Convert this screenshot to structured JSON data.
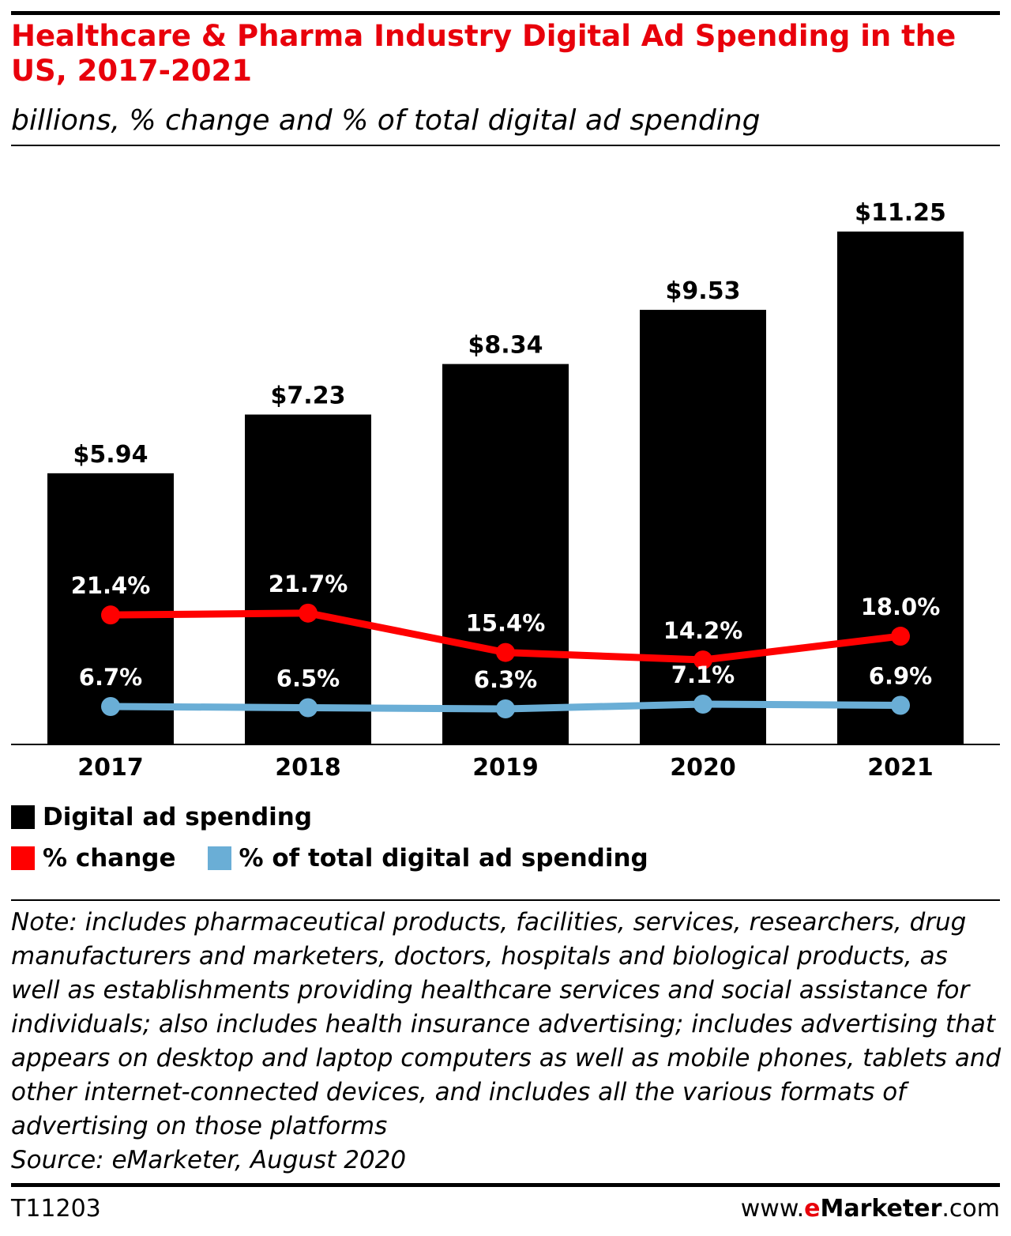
{
  "header": {
    "title": "Healthcare & Pharma Industry Digital Ad Spending in the US, 2017-2021",
    "subtitle": "billions, % change and % of total digital ad spending"
  },
  "chart_data": {
    "type": "bar",
    "categories": [
      "2017",
      "2018",
      "2019",
      "2020",
      "2021"
    ],
    "series": [
      {
        "name": "Digital ad spending",
        "type": "bar",
        "values": [
          5.94,
          7.23,
          8.34,
          9.53,
          11.25
        ],
        "labels": [
          "$5.94",
          "$7.23",
          "$8.34",
          "$9.53",
          "$11.25"
        ],
        "color": "#000000"
      },
      {
        "name": "% change",
        "type": "line",
        "values": [
          21.4,
          21.7,
          15.4,
          14.2,
          18.0
        ],
        "labels": [
          "21.4%",
          "21.7%",
          "15.4%",
          "14.2%",
          "18.0%"
        ],
        "color": "#ff0000"
      },
      {
        "name": "% of total digital ad spending",
        "type": "line",
        "values": [
          6.7,
          6.5,
          6.3,
          7.1,
          6.9
        ],
        "labels": [
          "6.7%",
          "6.5%",
          "6.3%",
          "7.1%",
          "6.9%"
        ],
        "color": "#6aaed6"
      }
    ],
    "title": "Healthcare & Pharma Industry Digital Ad Spending in the US, 2017-2021",
    "subtitle": "billions, % change and % of total digital ad spending",
    "xlabel": "",
    "ylabel": "",
    "ylim": [
      0,
      12
    ],
    "grid": false,
    "legend": "bottom-left"
  },
  "legend": {
    "bar": "Digital ad spending",
    "change": "% change",
    "share": "% of total digital ad spending"
  },
  "colors": {
    "title": "#e8000b",
    "bar": "#000000",
    "change": "#ff0000",
    "share": "#6aaed6"
  },
  "footer": {
    "note": "Note: includes pharmaceutical products, facilities, services, researchers, drug manufacturers and marketers, doctors, hospitals and biological products, as well as establishments providing healthcare services and social assistance for individuals; also includes health insurance advertising; includes advertising that appears on desktop and laptop computers as well as mobile phones, tablets and other internet-connected devices, and includes all the various formats of advertising on those platforms",
    "source": "Source: eMarketer, August 2020",
    "chart_id": "T11203",
    "site_prefix": "www.",
    "site_brand_e": "e",
    "site_brand_rest": "Marketer",
    "site_suffix": ".com"
  }
}
